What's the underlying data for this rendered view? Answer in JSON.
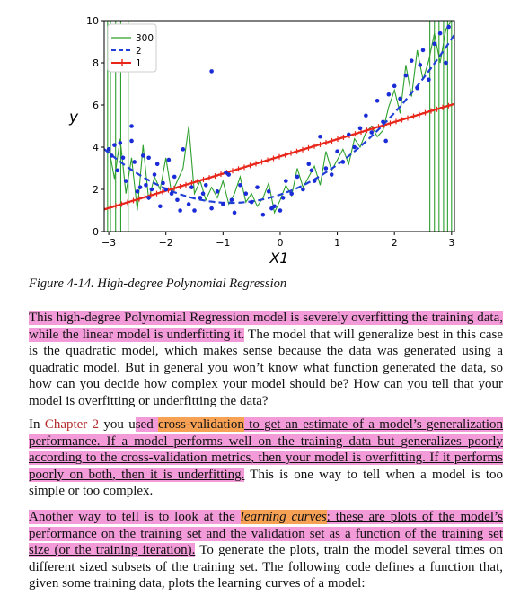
{
  "chart_data": {
    "type": "scatter",
    "title": "",
    "xlabel": "X1",
    "ylabel": "y",
    "xlim": [
      -3.08,
      3.05
    ],
    "ylim": [
      0,
      10
    ],
    "xticks": [
      "−3",
      "−2",
      "−1",
      "0",
      "1",
      "2",
      "3"
    ],
    "xtick_values": [
      -3,
      -2,
      -1,
      0,
      1,
      2,
      3
    ],
    "yticks": [
      "0",
      "2",
      "4",
      "6",
      "8",
      "10"
    ],
    "ytick_values": [
      0,
      2,
      4,
      6,
      8,
      10
    ],
    "grid": false,
    "legend_position": "top-left",
    "legend": [
      {
        "label": "300",
        "color": "#2ca02c",
        "style": "solid"
      },
      {
        "label": "2",
        "color": "#1f3fd6",
        "style": "dashed"
      },
      {
        "label": "1",
        "color": "#e8261a",
        "style": "solid-plus"
      }
    ],
    "points": {
      "color": "#1a2bd8",
      "x": [
        -3.0,
        -2.95,
        -2.9,
        -2.85,
        -2.8,
        -2.75,
        -2.7,
        -2.6,
        -2.55,
        -2.5,
        -2.45,
        -2.4,
        -2.35,
        -2.3,
        -2.25,
        -2.2,
        -2.15,
        -2.1,
        -2.05,
        -2.0,
        -1.95,
        -1.9,
        -1.85,
        -1.8,
        -1.7,
        -1.6,
        -1.55,
        -1.5,
        -1.4,
        -1.35,
        -1.3,
        -1.2,
        -1.1,
        -1.0,
        -0.9,
        -0.85,
        -0.8,
        -0.7,
        -0.6,
        -0.5,
        -0.4,
        -0.3,
        -0.2,
        -0.1,
        0.0,
        0.05,
        0.1,
        0.2,
        0.3,
        0.4,
        0.5,
        0.6,
        0.7,
        0.8,
        0.9,
        1.0,
        1.1,
        1.2,
        1.3,
        1.4,
        1.5,
        1.6,
        1.7,
        1.8,
        1.9,
        2.0,
        2.1,
        2.2,
        2.3,
        2.4,
        2.5,
        2.6,
        2.7,
        2.8,
        2.9,
        2.95,
        -1.2,
        -2.6,
        -2.3,
        -0.95,
        0.55,
        1.85,
        2.45,
        -1.75,
        -0.15
      ],
      "y": [
        3.9,
        3.6,
        4.1,
        2.9,
        4.2,
        3.5,
        2.4,
        4.3,
        3.3,
        1.9,
        2.1,
        3.6,
        2.2,
        1.6,
        2.0,
        2.7,
        3.2,
        1.2,
        2.3,
        2.0,
        3.4,
        1.8,
        2.6,
        1.5,
        3.9,
        1.3,
        2.1,
        1.0,
        1.6,
        1.8,
        2.2,
        1.1,
        1.9,
        1.3,
        2.7,
        1.5,
        0.9,
        2.2,
        1.8,
        1.4,
        2.1,
        0.8,
        1.9,
        1.2,
        1.0,
        1.6,
        2.4,
        1.8,
        2.6,
        2.0,
        3.2,
        2.4,
        4.5,
        3.0,
        2.7,
        3.8,
        3.3,
        4.6,
        4.0,
        4.9,
        5.5,
        4.7,
        6.2,
        5.2,
        6.5,
        6.9,
        6.3,
        7.4,
        8.1,
        6.8,
        8.6,
        7.2,
        8.9,
        9.4,
        8.0,
        9.7,
        7.6,
        5.0,
        3.5,
        2.8,
        2.9,
        4.3,
        7.9,
        1.0,
        1.1
      ]
    },
    "series": [
      {
        "label": "1",
        "kind": "linear",
        "x": [
          -3.08,
          3.05
        ],
        "y": [
          1.05,
          6.05
        ]
      },
      {
        "label": "2",
        "kind": "quadratic",
        "coefficients": [
          1.75,
          0.9,
          0.52
        ]
      },
      {
        "label": "300",
        "kind": "high-degree",
        "x": [
          -3.0,
          -2.9,
          -2.8,
          -2.7,
          -2.6,
          -2.5,
          -2.4,
          -2.3,
          -2.2,
          -2.1,
          -2.0,
          -1.9,
          -1.8,
          -1.7,
          -1.6,
          -1.5,
          -1.4,
          -1.3,
          -1.2,
          -1.1,
          -1.0,
          -0.9,
          -0.8,
          -0.7,
          -0.6,
          -0.5,
          -0.4,
          -0.3,
          -0.2,
          -0.1,
          0.0,
          0.1,
          0.2,
          0.3,
          0.4,
          0.5,
          0.6,
          0.7,
          0.8,
          0.9,
          1.0,
          1.1,
          1.2,
          1.3,
          1.4,
          1.5,
          1.6,
          1.7,
          1.8,
          1.9,
          2.0,
          2.1,
          2.2,
          2.3,
          2.4,
          2.5,
          2.6,
          2.7,
          2.8,
          2.9,
          3.0
        ],
        "y": [
          4.0,
          2.5,
          4.4,
          1.8,
          3.5,
          1.0,
          4.1,
          1.5,
          2.6,
          2.0,
          3.5,
          1.8,
          2.4,
          3.0,
          5.0,
          1.8,
          2.4,
          1.5,
          2.1,
          1.6,
          2.4,
          1.3,
          1.8,
          2.6,
          1.4,
          1.8,
          1.2,
          1.6,
          2.3,
          0.9,
          1.5,
          2.2,
          1.7,
          3.0,
          2.1,
          2.6,
          3.1,
          2.2,
          3.8,
          2.9,
          3.4,
          3.9,
          3.2,
          4.4,
          4.0,
          4.7,
          5.0,
          4.5,
          4.8,
          5.9,
          6.7,
          5.6,
          7.9,
          6.4,
          8.6,
          7.2,
          8.1,
          9.4,
          8.0,
          9.6,
          10.0
        ]
      }
    ]
  },
  "caption": "Figure 4-14. High-degree Polynomial Regression",
  "paragraphs": {
    "p1": {
      "hl": "This high-degree Polynomial Regression model is severely overfitting the training data, while the linear model is underfitting it.",
      "rest": " The model that will generalize best in this case is the quadratic model, which makes sense because the data was generated using a quadratic model. But in general you won’t know what function generated the data, so how can you decide how complex your model should be? How can you tell that your model is overfitting or underfitting the data?"
    },
    "p2": {
      "t1": "In ",
      "link": "Chapter 2",
      "t2": " you u",
      "hl1": "sed ",
      "hl_orange": "cross-validation",
      "hl2": " to get an estimate of a model’s generalization performance. If a model performs well on the training data but generalizes poorly according to the cross-validation metrics, then your model is overfitting. If it performs poorly on both, then it is underfitting.",
      "rest": " This is one way to tell when a model is too simple or too complex."
    },
    "p3": {
      "hl1": "Another way to tell is to look at the ",
      "em": "learning curves",
      "hl2": ": these are plots of the model’s performance on the training set and the validation set as a function of the training set size (or the training iteration).",
      "rest": " To generate the plots, train the model several times on different sized subsets of the training set. The following code defines a function that, given some training data, plots the learning curves of a model:"
    }
  }
}
